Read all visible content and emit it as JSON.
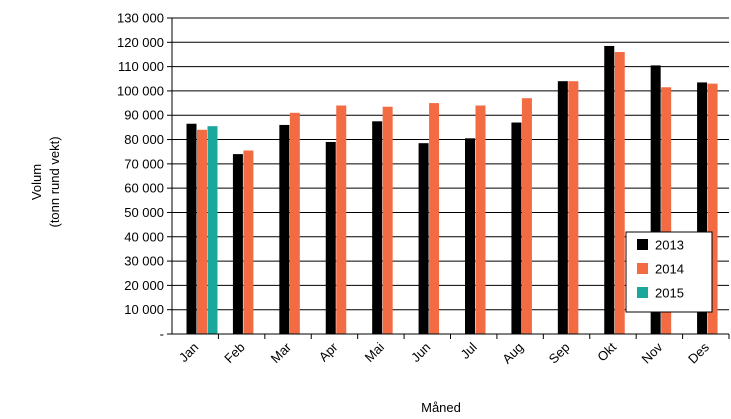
{
  "chart_data": {
    "type": "bar",
    "xlabel": "Måned",
    "ylabel_line1": "Volum",
    "ylabel_line2": "(tonn rund vekt)",
    "ylim": [
      0,
      130000
    ],
    "yticks": [
      0,
      10000,
      20000,
      30000,
      40000,
      50000,
      60000,
      70000,
      80000,
      90000,
      100000,
      110000,
      120000,
      130000
    ],
    "ytick_labels": [
      "-",
      "10 000",
      "20 000",
      "30 000",
      "40 000",
      "50 000",
      "60 000",
      "70 000",
      "80 000",
      "90 000",
      "100 000",
      "110 000",
      "120 000",
      "130 000"
    ],
    "grid": true,
    "legend_position": "bottom-right",
    "categories": [
      "Jan",
      "Feb",
      "Mar",
      "Apr",
      "Mai",
      "Jun",
      "Jul",
      "Aug",
      "Sep",
      "Okt",
      "Nov",
      "Des"
    ],
    "series": [
      {
        "name": "2013",
        "color": "#000000",
        "values": [
          86500,
          74000,
          86000,
          79000,
          87500,
          78500,
          80500,
          87000,
          104000,
          118500,
          110500,
          103500
        ]
      },
      {
        "name": "2014",
        "color": "#f26b43",
        "values": [
          84000,
          75500,
          91000,
          94000,
          93500,
          95000,
          94000,
          97000,
          104000,
          116000,
          101500,
          103000
        ]
      },
      {
        "name": "2015",
        "color": "#1aa89c",
        "values": [
          85500,
          null,
          null,
          null,
          null,
          null,
          null,
          null,
          null,
          null,
          null,
          null
        ]
      }
    ]
  }
}
